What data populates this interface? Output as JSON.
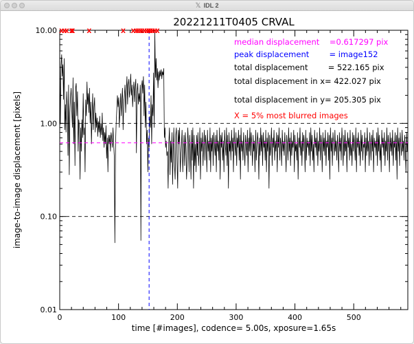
{
  "window": {
    "title": "IDL 2",
    "icon": "x11-icon"
  },
  "chart_data": {
    "type": "line",
    "title": "20221211T0405   CRVAL",
    "xlabel": "time [#images], codence= 5.00s, xposure=1.65s",
    "ylabel": "image-to-image displacement [pixels]",
    "xlim": [
      0,
      592
    ],
    "ylim": [
      0.01,
      10.0
    ],
    "yscale": "log",
    "xticks": [
      "0",
      "100",
      "200",
      "300",
      "400",
      "500"
    ],
    "yticks": [
      "0.01",
      "0.10",
      "1.00",
      "10.00"
    ],
    "ref_lines": {
      "dashed_black": [
        0.1,
        1.0
      ],
      "median_magenta": 0.617297,
      "peak_x": 152
    },
    "colors": {
      "median": "#ff00ff",
      "peak": "#0000ff",
      "blurred": "#ff0000",
      "trace": "#000000"
    },
    "annotations": [
      {
        "text": "median displacement    =0.617297 pix",
        "color": "#ff00ff"
      },
      {
        "text": "peak displacement        = image152",
        "color": "#0000ff"
      },
      {
        "text": "total displacement        = 522.165 pix",
        "color": "#000000"
      },
      {
        "text": "total displacement in x= 422.027 pix",
        "color": "#000000"
      },
      {
        "text": "total displacement in y= 205.305 pix",
        "color": "#000000"
      },
      {
        "text": "X = 5% most blurred images",
        "color": "#ff0000"
      }
    ],
    "blurred_images_x": [
      3,
      8,
      12,
      20,
      22,
      50,
      108,
      125,
      130,
      133,
      137,
      140,
      144,
      148,
      151,
      152,
      155,
      158,
      162,
      166
    ],
    "series": [
      {
        "values": [
          6.0,
          0.98,
          4.0,
          5.5,
          3.2,
          4.3,
          1.8,
          5.0,
          0.85,
          1.6,
          0.8,
          2.2,
          1.5,
          0.45,
          2.6,
          0.28,
          1.3,
          1.9,
          2.4,
          1.4,
          0.9,
          3.1,
          0.6,
          1.7,
          0.35,
          2.4,
          2.7,
          1.2,
          2.2,
          0.5,
          1.1,
          0.95,
          0.25,
          0.9,
          0.5,
          1.1,
          0.7,
          2.1,
          0.75,
          0.9,
          0.3,
          1.8,
          1.2,
          2.8,
          1.6,
          2.1,
          1.3,
          2.4,
          1.0,
          1.7,
          0.6,
          1.2,
          2.1,
          0.85,
          1.5,
          1.9,
          0.8,
          1.3,
          0.9,
          1.15,
          0.72,
          1.05,
          0.8,
          1.2,
          0.7,
          1.0,
          0.75,
          1.3,
          0.65,
          0.9,
          0.55,
          0.8,
          0.6,
          0.95,
          0.42,
          0.7,
          0.3,
          0.75,
          0.6,
          0.75,
          0.5,
          0.8,
          0.7,
          0.55,
          0.9,
          0.6,
          0.45,
          0.052,
          0.6,
          1.0,
          1.4,
          2.0,
          1.5,
          1.9,
          0.9,
          1.4,
          2.1,
          1.2,
          1.8,
          2.4,
          0.85,
          1.7,
          2.0,
          2.6,
          1.3,
          2.2,
          3.2,
          1.6,
          2.6,
          3.0,
          1.9,
          2.3,
          3.4,
          2.0,
          2.6,
          1.5,
          2.2,
          2.8,
          1.7,
          2.5,
          3.0,
          0.48,
          2.2,
          2.7,
          1.6,
          2.1,
          1.7,
          2.6,
          0.055,
          2.4,
          2.9,
          2.1,
          3.2,
          1.2,
          2.6,
          0.9,
          1.7,
          0.6,
          0.85,
          0.3,
          0.7,
          0.55,
          1.2,
          0.9,
          2.0,
          0.6,
          1.6,
          1.2,
          3.5,
          0.9,
          9.5,
          3.1,
          5.0,
          2.9,
          3.9,
          2.4,
          3.6,
          2.9,
          3.7,
          3.2,
          3.8,
          3.0,
          3.6,
          3.3,
          3.9,
          0.7,
          0.9,
          0.55,
          0.65,
          0.45,
          0.5,
          0.2,
          0.6,
          0.9,
          0.28,
          0.65,
          0.38,
          0.8,
          0.22,
          0.5,
          0.9,
          0.35,
          0.25,
          0.75,
          0.9,
          0.4,
          0.2,
          0.85,
          0.6,
          0.9,
          0.3,
          0.45,
          0.6,
          0.85,
          0.3,
          0.5,
          0.75,
          0.35,
          0.8,
          0.55,
          0.25,
          0.38,
          0.9,
          0.6,
          0.3,
          0.75,
          0.5,
          0.25,
          0.85,
          0.4,
          0.9,
          0.2,
          0.75,
          0.35,
          0.6,
          0.3,
          0.75,
          0.45,
          0.8,
          0.35,
          0.5,
          0.9,
          0.25,
          0.7,
          0.5,
          0.8,
          0.35,
          0.55,
          0.85,
          0.4,
          0.75,
          0.6,
          0.3,
          0.85,
          0.5,
          0.65,
          0.4,
          0.9,
          0.3,
          0.7,
          0.5,
          0.75,
          0.35,
          0.8,
          0.6,
          0.45,
          0.75,
          0.3,
          0.85,
          0.5,
          0.65,
          0.4,
          0.9,
          0.25,
          0.75,
          0.55,
          0.8,
          0.4,
          0.65,
          0.3,
          0.85,
          0.6,
          0.45,
          0.9,
          0.35,
          0.75,
          0.2,
          0.8,
          0.5,
          0.65,
          0.4,
          0.85,
          0.5,
          0.7,
          0.3,
          0.9,
          0.6,
          0.45,
          0.8,
          0.35,
          0.7,
          0.55,
          0.85,
          0.4,
          0.75,
          0.25,
          0.9,
          0.5,
          0.65,
          0.4,
          0.8,
          0.55,
          0.35,
          0.75,
          0.6,
          0.45,
          0.85,
          0.3,
          0.7,
          0.5,
          0.9,
          0.45,
          0.8,
          0.6,
          0.35,
          0.75,
          0.5,
          0.65,
          0.3,
          0.85,
          0.4,
          0.55,
          0.8,
          0.6,
          0.25,
          0.7,
          0.45,
          0.9,
          0.5,
          0.75,
          0.35,
          0.8,
          0.55,
          0.65,
          0.4,
          0.85,
          0.3,
          0.7,
          0.5,
          0.8,
          0.2,
          0.75,
          0.45,
          0.6,
          0.9,
          0.35,
          0.7,
          0.55,
          0.85,
          0.4,
          0.65,
          0.5,
          0.8,
          0.3,
          0.75,
          0.55,
          0.9,
          0.4,
          0.7,
          0.6,
          0.35,
          0.85,
          0.5,
          0.65,
          0.45,
          0.8,
          0.55,
          0.3,
          0.75,
          0.6,
          0.4,
          0.9,
          0.5,
          0.7,
          0.35,
          0.8,
          0.45,
          0.65,
          0.55,
          0.85,
          0.3,
          0.75,
          0.5,
          0.6,
          0.4,
          0.8,
          0.25,
          0.7,
          0.55,
          0.9,
          0.45,
          0.65,
          0.35,
          0.8,
          0.5,
          0.75,
          0.6,
          0.3,
          0.85,
          0.4,
          0.7,
          0.55,
          0.65,
          0.45,
          0.8,
          0.35,
          0.9,
          0.5,
          0.75,
          0.4,
          0.6,
          0.3,
          0.85,
          0.55,
          0.7,
          0.45,
          0.8,
          0.35,
          0.65,
          0.5,
          0.9,
          0.4,
          0.75,
          0.6,
          0.3,
          0.8,
          0.5,
          0.7,
          0.45,
          0.85,
          0.35,
          0.65,
          0.55,
          0.8,
          0.4,
          0.75,
          0.25,
          0.9,
          0.5,
          0.7,
          0.35,
          0.8,
          0.6,
          0.45,
          0.85,
          0.5,
          0.65,
          0.4,
          0.75,
          0.55,
          0.3,
          0.8,
          0.5,
          0.7,
          0.4,
          0.9,
          0.6,
          0.35,
          0.75,
          0.45,
          0.85,
          0.5,
          0.65,
          0.3,
          0.8,
          0.55,
          0.7,
          0.4,
          0.85,
          0.45,
          0.6,
          0.35,
          0.8,
          0.5,
          0.75,
          0.6,
          0.4,
          0.9,
          0.3,
          0.7,
          0.55,
          0.8,
          0.45,
          0.65,
          0.35,
          0.85,
          0.5,
          0.75,
          0.4,
          0.6,
          0.55,
          0.8,
          0.3,
          0.7,
          0.45,
          0.9,
          0.5,
          0.65,
          0.35,
          0.8,
          0.6,
          0.4,
          0.75,
          0.5,
          0.85,
          0.3,
          0.7,
          0.55,
          0.65,
          0.45,
          0.8,
          0.35,
          0.9,
          0.5,
          0.75,
          0.4,
          0.6,
          0.3,
          0.85,
          0.55,
          0.7,
          0.45,
          0.8,
          0.35,
          0.65,
          0.5,
          0.9,
          0.4,
          0.75,
          0.6,
          0.3,
          0.8,
          0.5,
          0.7,
          0.45,
          0.85,
          0.35,
          0.65,
          0.55,
          0.8,
          0.4,
          0.75,
          0.25,
          0.9,
          0.5,
          0.7,
          0.35,
          0.8,
          0.6,
          0.45,
          0.85,
          0.5,
          0.65,
          0.4,
          0.75,
          0.55,
          0.3,
          0.8,
          0.5,
          0.7
        ]
      }
    ]
  }
}
